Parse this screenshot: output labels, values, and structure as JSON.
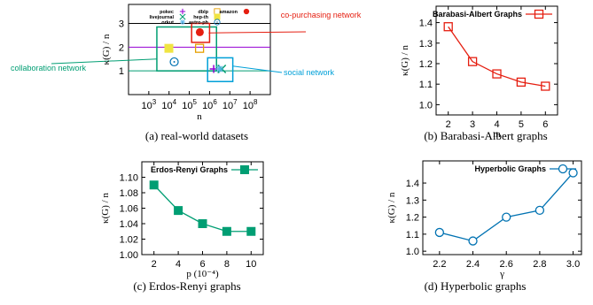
{
  "chart_data": [
    {
      "type": "scatter",
      "caption": "(a)  real-world datasets",
      "xlabel": "n",
      "ylabel": "κ(G) / n",
      "xscale": "log",
      "xticks": [
        "10^3",
        "10^4",
        "10^5",
        "10^6",
        "10^7",
        "10^8"
      ],
      "yticks": [
        1,
        2,
        3
      ],
      "xlim": [
        100,
        1000000000
      ],
      "ylim": [
        0,
        3.8
      ],
      "series": [
        {
          "name": "pokec",
          "x": 1600000,
          "y": 1.08,
          "marker": "plus",
          "color": "#9400d3"
        },
        {
          "name": "livejournal",
          "x": 4000000,
          "y": 1.08,
          "marker": "x",
          "color": "#009e73"
        },
        {
          "name": "orkut",
          "x": 3100000,
          "y": 1.08,
          "marker": "star",
          "color": "#56b4e9"
        },
        {
          "name": "dblp",
          "x": 320000,
          "y": 1.95,
          "marker": "square-open",
          "color": "#e69f00"
        },
        {
          "name": "hep-th",
          "x": 9800,
          "y": 1.95,
          "marker": "square",
          "color": "#f0e442"
        },
        {
          "name": "astro-ph",
          "x": 18000,
          "y": 1.38,
          "marker": "circle-dot",
          "color": "#0072b2"
        },
        {
          "name": "amazon",
          "x": 330000,
          "y": 2.63,
          "marker": "circle",
          "color": "#e51e10"
        }
      ],
      "reference_lines": [
        {
          "y": 3,
          "color": "#000000"
        },
        {
          "y": 2,
          "color": "#9400d3"
        },
        {
          "y": 1,
          "color": "#009e73"
        }
      ],
      "annotations": [
        {
          "text": "co-purchasing network",
          "color": "#e51e10"
        },
        {
          "text": "collaboration network",
          "color": "#009e73"
        },
        {
          "text": "social network",
          "color": "#00a0d8"
        }
      ]
    },
    {
      "type": "line",
      "caption": "(b)  Barabasi-Albert graphs",
      "legend": "Barabasi-Albert Graphs",
      "xlabel": "m",
      "ylabel": "κ(G) / n",
      "x": [
        2,
        3,
        4,
        5,
        6
      ],
      "y": [
        1.38,
        1.21,
        1.15,
        1.11,
        1.09
      ],
      "xlim": [
        1.5,
        6.5
      ],
      "ylim": [
        0.95,
        1.48
      ],
      "yticks": [
        "1.0",
        "1.1",
        "1.2",
        "1.3",
        "1.4"
      ],
      "xticks": [
        "2",
        "3",
        "4",
        "5",
        "6"
      ],
      "color": "#e51e10",
      "marker": "square-open"
    },
    {
      "type": "line",
      "caption": "(c)  Erdos-Renyi graphs",
      "legend": "Erdos-Renyi Graphs",
      "xlabel": "p (10⁻⁴)",
      "ylabel": "κ(G) / n",
      "x": [
        2,
        4,
        6,
        8,
        10
      ],
      "y": [
        1.09,
        1.057,
        1.04,
        1.03,
        1.03
      ],
      "xlim": [
        1,
        11
      ],
      "ylim": [
        1.0,
        1.12
      ],
      "yticks": [
        "1.00",
        "1.02",
        "1.04",
        "1.06",
        "1.08",
        "1.10"
      ],
      "xticks": [
        "2",
        "4",
        "6",
        "8",
        "10"
      ],
      "color": "#009e73",
      "marker": "square"
    },
    {
      "type": "line",
      "caption": "(d)  Hyperbolic graphs",
      "legend": "Hyperbolic Graphs",
      "xlabel": "γ",
      "ylabel": "κ(G) / n",
      "x": [
        2.2,
        2.4,
        2.6,
        2.8,
        3.0
      ],
      "y": [
        1.11,
        1.06,
        1.2,
        1.24,
        1.46
      ],
      "xlim": [
        2.1,
        3.05
      ],
      "ylim": [
        0.98,
        1.53
      ],
      "yticks": [
        "1.0",
        "1.1",
        "1.2",
        "1.3",
        "1.4"
      ],
      "xticks": [
        "2.2",
        "2.4",
        "2.6",
        "2.8",
        "3.0"
      ],
      "color": "#0072b2",
      "marker": "circle-open"
    }
  ]
}
